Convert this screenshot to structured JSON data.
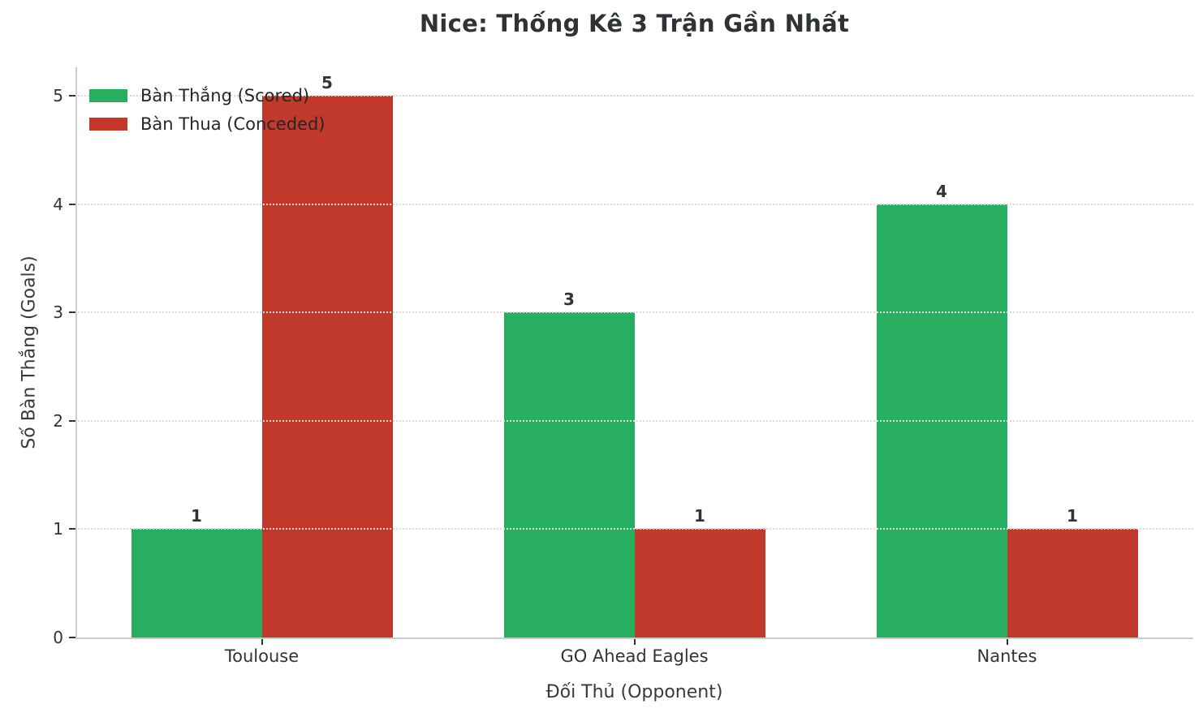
{
  "chart_data": {
    "type": "bar",
    "title": "Nice: Thống Kê 3 Trận Gần Nhất",
    "xlabel": "Đối Thủ (Opponent)",
    "ylabel": "Số Bàn Thắng (Goals)",
    "categories": [
      "Toulouse",
      "GO Ahead Eagles",
      "Nantes"
    ],
    "series": [
      {
        "name": "Bàn Thắng (Scored)",
        "key": "scored",
        "color": "#27ae60",
        "values": [
          1,
          3,
          4
        ]
      },
      {
        "name": "Bàn Thua (Conceded)",
        "key": "conceded",
        "color": "#c0392b",
        "values": [
          5,
          1,
          1
        ]
      }
    ],
    "yticks": [
      0,
      1,
      2,
      3,
      4,
      5
    ],
    "ylim": [
      0,
      5.26
    ],
    "grid": "horizontal-dotted",
    "legend_position": "upper-left",
    "colors": {
      "grid": "#d9d9d9",
      "spine": "#cccccc",
      "tick_text": "#333333",
      "title_text": "#2f3236",
      "value_label_text": "#333333"
    }
  }
}
